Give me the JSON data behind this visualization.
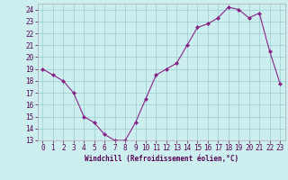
{
  "x": [
    0,
    1,
    2,
    3,
    4,
    5,
    6,
    7,
    8,
    9,
    10,
    11,
    12,
    13,
    14,
    15,
    16,
    17,
    18,
    19,
    20,
    21,
    22,
    23
  ],
  "y": [
    19,
    18.5,
    18,
    17,
    15,
    14.5,
    13.5,
    13,
    13,
    14.5,
    16.5,
    18.5,
    19,
    19.5,
    21,
    22.5,
    22.8,
    23.3,
    24.2,
    24,
    23.3,
    23.7,
    20.5,
    17.8
  ],
  "line_color": "#882288",
  "marker": "D",
  "marker_size": 2.5,
  "bg_color": "#cceeee",
  "grid_color": "#99cccc",
  "xlabel": "Windchill (Refroidissement éolien,°C)",
  "ylim": [
    13,
    24.5
  ],
  "xlim": [
    -0.5,
    23.5
  ],
  "yticks": [
    13,
    14,
    15,
    16,
    17,
    18,
    19,
    20,
    21,
    22,
    23,
    24
  ],
  "xticks": [
    0,
    1,
    2,
    3,
    4,
    5,
    6,
    7,
    8,
    9,
    10,
    11,
    12,
    13,
    14,
    15,
    16,
    17,
    18,
    19,
    20,
    21,
    22,
    23
  ],
  "xlabel_fontsize": 5.5,
  "tick_fontsize": 5.5
}
